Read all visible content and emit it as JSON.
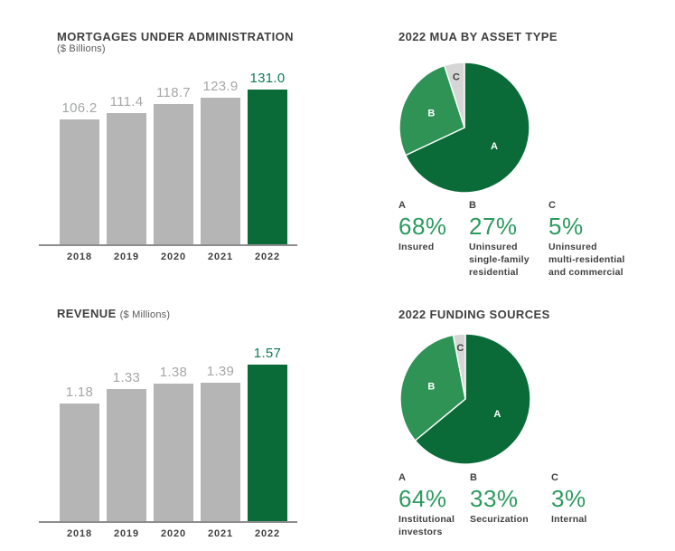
{
  "colors": {
    "background": "#ffffff",
    "accent_green_dark": "#0b6b38",
    "accent_green_mid": "#2e9355",
    "slice_gray": "#d6d6d6",
    "bar_gray": "#b5b5b6",
    "value_label_gray": "#a6a7a9",
    "value_label_green": "#0d7c55",
    "legend_percent_green": "#2b9b5e",
    "text_dark": "#414042",
    "subtitle_gray": "#58595b",
    "axis_gray": "#8d8d90"
  },
  "chart_data": [
    {
      "id": "mortgages-under-administration",
      "type": "bar",
      "title": "MORTGAGES UNDER ADMINISTRATION",
      "subtitle": "($ Billions)",
      "categories": [
        "2018",
        "2019",
        "2020",
        "2021",
        "2022"
      ],
      "values": [
        106.2,
        111.4,
        118.7,
        123.9,
        131.0
      ],
      "value_labels": [
        "106.2",
        "111.4",
        "118.7",
        "123.9",
        "131.0"
      ],
      "highlight_index": 4,
      "ylim": [
        0,
        131.0
      ],
      "grid": false,
      "bar_color": "#b5b5b6",
      "highlight_color": "#0b6b38",
      "label_color": "#a6a7a9",
      "highlight_label_color": "#0d7c55"
    },
    {
      "id": "mua-by-asset-type",
      "type": "pie",
      "title": "2022 MUA BY ASSET TYPE",
      "start_angle_deg": 0,
      "direction": "clockwise",
      "legend_position": "below",
      "slices": [
        {
          "key": "A",
          "pct": 68,
          "pct_label": "68%",
          "label": "Insured",
          "color": "#0b6b38",
          "letter_color": "#ffffff"
        },
        {
          "key": "B",
          "pct": 27,
          "pct_label": "27%",
          "label": "Uninsured\nsingle-family\nresidential",
          "color": "#2e9355",
          "letter_color": "#ffffff"
        },
        {
          "key": "C",
          "pct": 5,
          "pct_label": "5%",
          "label": "Uninsured\nmulti-residential\nand commercial",
          "color": "#d6d6d6",
          "letter_color": "#414042"
        }
      ]
    },
    {
      "id": "revenue",
      "type": "bar",
      "title": "REVENUE",
      "subtitle": "($ Millions)",
      "categories": [
        "2018",
        "2019",
        "2020",
        "2021",
        "2022"
      ],
      "values": [
        1.18,
        1.33,
        1.38,
        1.39,
        1.57
      ],
      "value_labels": [
        "1.18",
        "1.33",
        "1.38",
        "1.39",
        "1.57"
      ],
      "highlight_index": 4,
      "ylim": [
        0,
        1.57
      ],
      "grid": false,
      "bar_color": "#b5b5b6",
      "highlight_color": "#0b6b38",
      "label_color": "#a6a7a9",
      "highlight_label_color": "#0d7c55"
    },
    {
      "id": "funding-sources",
      "type": "pie",
      "title": "2022 FUNDING SOURCES",
      "start_angle_deg": 0,
      "direction": "clockwise",
      "legend_position": "below",
      "slices": [
        {
          "key": "A",
          "pct": 64,
          "pct_label": "64%",
          "label": "Institutional\ninvestors",
          "color": "#0b6b38",
          "letter_color": "#ffffff"
        },
        {
          "key": "B",
          "pct": 33,
          "pct_label": "33%",
          "label": "Securization",
          "color": "#2e9355",
          "letter_color": "#ffffff"
        },
        {
          "key": "C",
          "pct": 3,
          "pct_label": "3%",
          "label": "Internal",
          "color": "#d6d6d6",
          "letter_color": "#414042"
        }
      ]
    }
  ]
}
